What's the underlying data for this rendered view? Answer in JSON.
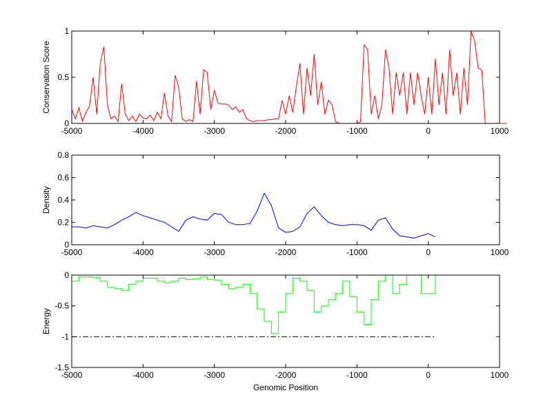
{
  "chart_data": [
    {
      "type": "line",
      "ylabel": "Conservation Score",
      "xlabel": "",
      "xlim": [
        -5000,
        1000
      ],
      "ylim": [
        0,
        1
      ],
      "xticks": [
        "-5000",
        "-4000",
        "-3000",
        "-2000",
        "-1000",
        "0",
        "1000"
      ],
      "yticks": [
        "0",
        "0.5",
        "1"
      ],
      "ytick_values": [
        0,
        0.5,
        1
      ],
      "color": "#ff0000",
      "x_start": -5000,
      "x_step": 50,
      "values": [
        0.15,
        0.05,
        0.17,
        0.02,
        0.12,
        0.19,
        0.5,
        0.1,
        0.65,
        0.83,
        0.2,
        0.05,
        0.08,
        0.02,
        0.43,
        0.1,
        0.03,
        0.08,
        0.02,
        0.1,
        0.06,
        0.05,
        0.09,
        0.03,
        0.12,
        0.05,
        0.33,
        0.08,
        0.02,
        0.52,
        0.39,
        0.05,
        0.02,
        0.04,
        0.02,
        0.46,
        0.1,
        0.58,
        0.55,
        0.15,
        0.36,
        0.22,
        0.21,
        0.21,
        0.2,
        0.15,
        0.18,
        0.12,
        0.15,
        0.05,
        0.03,
        0.02,
        0.03,
        0.03,
        0.03,
        0.04,
        0.04,
        0.05,
        0.05,
        0.25,
        0.1,
        0.3,
        0.12,
        0.4,
        0.65,
        0.1,
        0.6,
        0.3,
        0.75,
        0.2,
        0.45,
        0.1,
        0.25,
        0.2,
        0.02,
        0.0,
        0.0,
        0.0,
        0.0,
        0.0,
        0.0,
        0.02,
        0.85,
        0.8,
        0.1,
        0.3,
        0.05,
        0.2,
        0.8,
        0.6,
        0.1,
        0.55,
        0.3,
        0.55,
        0.1,
        0.55,
        0.2,
        0.55,
        0.3,
        0.1,
        0.5,
        0.1,
        0.7,
        0.2,
        0.55,
        0.1,
        0.8,
        0.3,
        0.55,
        0.1,
        0.6,
        0.2,
        1.0,
        0.9,
        0.6,
        0.58,
        0.0,
        0.0,
        0.0,
        0.0,
        0.0,
        0.0,
        0.0
      ]
    },
    {
      "type": "line",
      "ylabel": "Density",
      "xlabel": "",
      "xlim": [
        -5000,
        1000
      ],
      "ylim": [
        0,
        0.8
      ],
      "xticks": [
        "-5000",
        "-4000",
        "-3000",
        "-2000",
        "-1000",
        "0",
        "1000"
      ],
      "yticks": [
        "0",
        "0.2",
        "0.4",
        "0.6",
        "0.8"
      ],
      "ytick_values": [
        0,
        0.2,
        0.4,
        0.6,
        0.8
      ],
      "color": "#0000ff",
      "x_start": -5000,
      "x_step": 100,
      "values": [
        0.16,
        0.16,
        0.15,
        0.17,
        0.16,
        0.15,
        0.18,
        0.22,
        0.25,
        0.29,
        0.26,
        0.24,
        0.22,
        0.2,
        0.16,
        0.12,
        0.22,
        0.25,
        0.23,
        0.22,
        0.28,
        0.27,
        0.2,
        0.18,
        0.18,
        0.19,
        0.3,
        0.46,
        0.35,
        0.15,
        0.11,
        0.12,
        0.16,
        0.28,
        0.34,
        0.26,
        0.2,
        0.18,
        0.17,
        0.18,
        0.18,
        0.17,
        0.13,
        0.22,
        0.24,
        0.14,
        0.08,
        0.07,
        0.06,
        0.08,
        0.1,
        0.07
      ]
    },
    {
      "type": "line",
      "ylabel": "Energy",
      "xlabel": "Genomic Position",
      "xlim": [
        -5000,
        1000
      ],
      "ylim": [
        -1.5,
        0
      ],
      "xticks": [
        "-5000",
        "-4000",
        "-3000",
        "-2000",
        "-1000",
        "0",
        "1000"
      ],
      "yticks": [
        "-1.5",
        "-1",
        "-0.5",
        "0"
      ],
      "ytick_values": [
        -1.5,
        -1,
        -0.5,
        0
      ],
      "color": "#00ff00",
      "threshold": -1,
      "x_start": -5000,
      "x_step": 100,
      "values": [
        -0.1,
        -0.03,
        -0.03,
        -0.04,
        -0.1,
        -0.2,
        -0.22,
        -0.25,
        -0.15,
        -0.1,
        -0.05,
        -0.05,
        -0.1,
        -0.12,
        -0.1,
        -0.05,
        -0.07,
        -0.06,
        -0.03,
        -0.07,
        -0.08,
        -0.15,
        -0.22,
        -0.2,
        -0.15,
        -0.3,
        -0.55,
        -0.75,
        -0.95,
        -0.6,
        -0.3,
        -0.05,
        -0.1,
        -0.25,
        -0.6,
        -0.5,
        -0.4,
        -0.3,
        -0.1,
        -0.35,
        -0.6,
        -0.8,
        -0.4,
        -0.1,
        0,
        -0.3,
        -0.15,
        0,
        0,
        -0.3,
        -0.3,
        0
      ]
    }
  ]
}
